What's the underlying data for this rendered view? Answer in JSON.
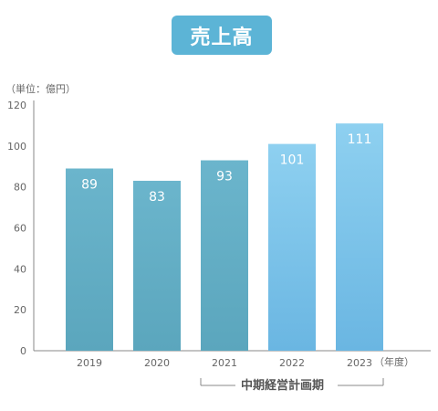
{
  "chart_data": {
    "type": "bar",
    "title": "売上高",
    "unit_label": "（単位：億円）",
    "x_unit_label": "（年度）",
    "categories": [
      "2019",
      "2020",
      "2021",
      "2022",
      "2023"
    ],
    "values": [
      89,
      83,
      93,
      101,
      111
    ],
    "yticks": [
      0,
      20,
      40,
      60,
      80,
      100,
      120
    ],
    "ylim": [
      0,
      120
    ],
    "grid": false,
    "annotation": {
      "label": "中期経営計画期",
      "span": [
        "2021",
        "2023"
      ]
    },
    "colors": {
      "past_top": "#6bb5cc",
      "past_bottom": "#5ba6bd",
      "plan_top": "#8ed0f0",
      "plan_bottom": "#6ab6e2",
      "axis": "#888888",
      "label": "#666666",
      "badge": "#5cb4d6"
    },
    "highlight_from": "2022"
  }
}
